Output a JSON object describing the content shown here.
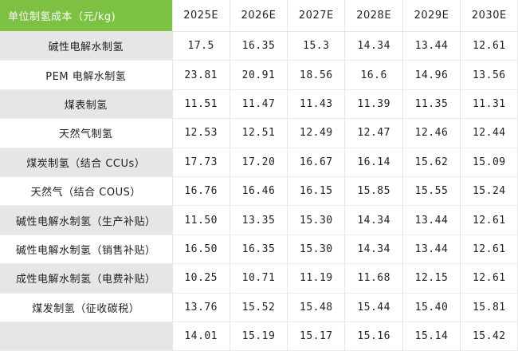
{
  "table": {
    "header_label": "单位制氢成本（元/kg)",
    "years": [
      "2025E",
      "2026E",
      "2027E",
      "2028E",
      "2029E",
      "2030E"
    ],
    "rows": [
      {
        "label": "碱性电解水制氢",
        "values": [
          "17.5",
          "16.35",
          "15.3",
          "14.34",
          "13.44",
          "12.61"
        ]
      },
      {
        "label": "PEM 电解水制氢",
        "values": [
          "23.81",
          "20.91",
          "18.56",
          "16.6",
          "14.96",
          "13.56"
        ]
      },
      {
        "label": "煤表制氢",
        "values": [
          "11.51",
          "11.47",
          "11.43",
          "11.39",
          "11.35",
          "11.31"
        ]
      },
      {
        "label": "天然气制氢",
        "values": [
          "12.53",
          "12.51",
          "12.49",
          "12.47",
          "12.46",
          "12.44"
        ]
      },
      {
        "label": "煤炭制氢（结合 CCUs）",
        "values": [
          "17.73",
          "17.20",
          "16.67",
          "16.14",
          "15.62",
          "15.09"
        ]
      },
      {
        "label": "天然气（结合 COUS）",
        "values": [
          "16.76",
          "16.46",
          "16.15",
          "15.85",
          "15.55",
          "15.24"
        ]
      },
      {
        "label": "碱性电解水制氢（生产补贴）",
        "values": [
          "11.50",
          "13.35",
          "15.30",
          "14.34",
          "13.44",
          "12.61"
        ]
      },
      {
        "label": "碱性电解水制氢（销售补贴）",
        "values": [
          "16.50",
          "16.35",
          "15.30",
          "14.34",
          "13.44",
          "12.61"
        ]
      },
      {
        "label": "成性电解水制氢（电费补贴）",
        "values": [
          "10.25",
          "10.71",
          "11.19",
          "11.68",
          "12.15",
          "12.61"
        ]
      },
      {
        "label": "煤发制氢（征收碳税）",
        "values": [
          "13.76",
          "15.52",
          "15.48",
          "15.44",
          "15.40",
          "15.81"
        ]
      },
      {
        "label": "",
        "values": [
          "14.01",
          "15.19",
          "15.17",
          "15.16",
          "15.14",
          "15.42"
        ]
      }
    ]
  },
  "colors": {
    "header_green": "#7cc142",
    "label_gray": "#e6e6e6"
  }
}
